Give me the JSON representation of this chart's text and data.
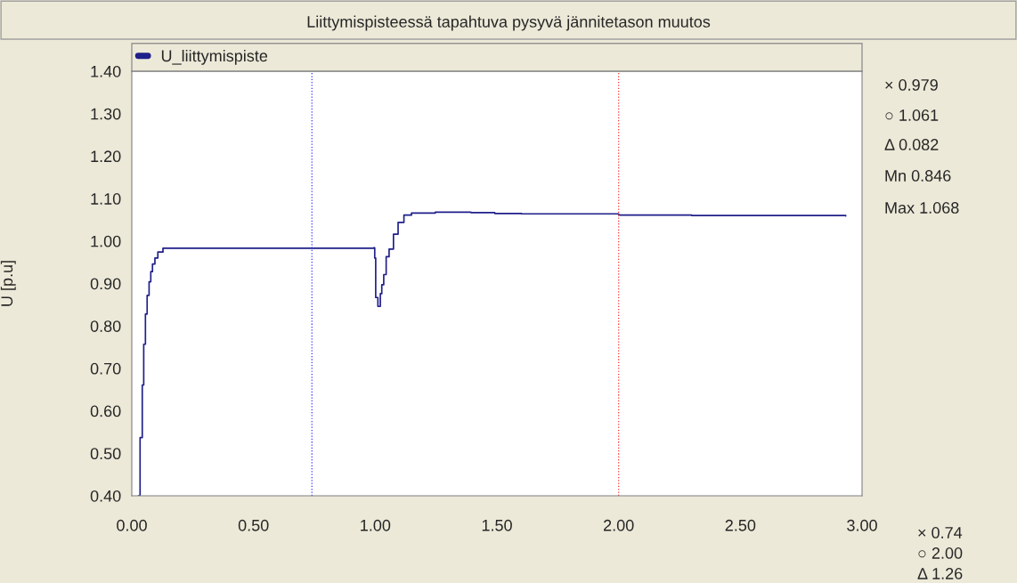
{
  "chart_data": {
    "type": "step",
    "title": "Liittymispisteessä tapahtuva pysyvä jännitetason muutos",
    "ylabel": "U [p.u]",
    "x": [
      0.027,
      0.034,
      0.043,
      0.049,
      0.056,
      0.063,
      0.071,
      0.078,
      0.085,
      0.095,
      0.107,
      0.128,
      0.3,
      0.6,
      0.994,
      0.998,
      1.002,
      1.011,
      1.021,
      1.027,
      1.035,
      1.045,
      1.057,
      1.075,
      1.094,
      1.118,
      1.149,
      1.247,
      1.393,
      1.491,
      1.601,
      2.0,
      2.3,
      2.6,
      2.933
    ],
    "series": [
      {
        "name": "U_liittymispiste",
        "color": "#1f1f8a",
        "values": [
          0.4,
          0.537,
          0.661,
          0.757,
          0.828,
          0.872,
          0.904,
          0.928,
          0.946,
          0.96,
          0.974,
          0.983,
          0.983,
          0.983,
          0.984,
          0.96,
          0.867,
          0.846,
          0.876,
          0.897,
          0.921,
          0.963,
          0.981,
          1.016,
          1.044,
          1.061,
          1.066,
          1.068,
          1.067,
          1.065,
          1.064,
          1.061,
          1.06,
          1.06,
          1.059
        ]
      }
    ],
    "xlim": [
      0.0,
      3.0
    ],
    "xticks": [
      {
        "value": 0,
        "label": "0.00"
      },
      {
        "value": 0.5,
        "label": "0.50"
      },
      {
        "value": 1,
        "label": "1.00"
      },
      {
        "value": 1.5,
        "label": "1.50"
      },
      {
        "value": 2,
        "label": "2.00"
      },
      {
        "value": 2.5,
        "label": "2.50"
      },
      {
        "value": 3,
        "label": "3.00"
      }
    ],
    "ylim": [
      0.4,
      1.4
    ],
    "yticks": [
      {
        "value": 0.4,
        "label": "0.40"
      },
      {
        "value": 0.5,
        "label": "0.50"
      },
      {
        "value": 0.6,
        "label": "0.60"
      },
      {
        "value": 0.7,
        "label": "0.70"
      },
      {
        "value": 0.8,
        "label": "0.80"
      },
      {
        "value": 0.9,
        "label": "0.90"
      },
      {
        "value": 1.0,
        "label": "1.00"
      },
      {
        "value": 1.1,
        "label": "1.10"
      },
      {
        "value": 1.2,
        "label": "1.20"
      },
      {
        "value": 1.3,
        "label": "1.30"
      },
      {
        "value": 1.4,
        "label": "1.40"
      }
    ],
    "ref_lines": [
      {
        "axis": "x",
        "value": 0.74,
        "color": "#3333ff",
        "line_style": "dotted"
      },
      {
        "axis": "x",
        "value": 2.0,
        "color": "#ff3333",
        "line_style": "dotted"
      }
    ],
    "annotations": [
      "× 0.979",
      "○ 1.061",
      "Δ 0.082",
      "Mn 0.846",
      "Max 1.068",
      "× 0.74",
      "○ 2.00",
      "Δ 1.26"
    ],
    "legend": "top left",
    "grid": false
  }
}
